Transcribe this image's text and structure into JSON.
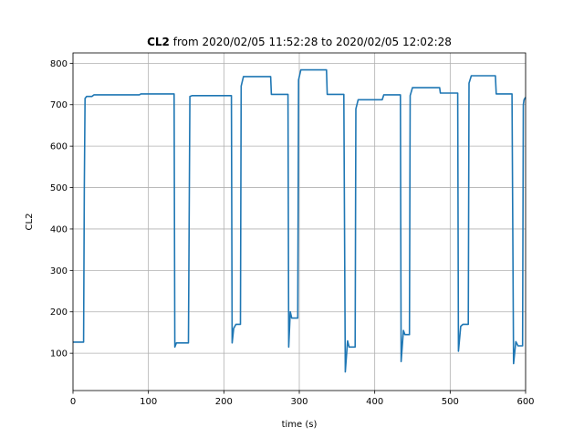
{
  "chart_data": {
    "type": "line",
    "title_bold": "CL2",
    "title_rest": " from 2020/02/05 11:52:28 to 2020/02/05 12:02:28",
    "xlabel": "time (s)",
    "ylabel": "CL2",
    "xlim": [
      0,
      600
    ],
    "ylim": [
      10,
      825
    ],
    "grid": true,
    "x_ticks": [
      0,
      100,
      200,
      300,
      400,
      500,
      600
    ],
    "y_ticks": [
      100,
      200,
      300,
      400,
      500,
      600,
      700,
      800
    ],
    "colors": {
      "line": "#1f77b4"
    },
    "series": [
      {
        "values": [
          [
            0,
            127
          ],
          [
            14,
            127
          ],
          [
            15,
            500
          ],
          [
            16,
            715
          ],
          [
            18,
            720
          ],
          [
            25,
            720
          ],
          [
            28,
            724
          ],
          [
            60,
            724
          ],
          [
            88,
            724
          ],
          [
            90,
            726
          ],
          [
            134,
            726
          ],
          [
            135,
            115
          ],
          [
            137,
            125
          ],
          [
            153,
            125
          ],
          [
            155,
            720
          ],
          [
            158,
            722
          ],
          [
            210,
            722
          ],
          [
            211,
            125
          ],
          [
            213,
            160
          ],
          [
            216,
            170
          ],
          [
            222,
            170
          ],
          [
            223,
            745
          ],
          [
            226,
            768
          ],
          [
            262,
            768
          ],
          [
            263,
            725
          ],
          [
            285,
            725
          ],
          [
            286,
            115
          ],
          [
            288,
            200
          ],
          [
            290,
            185
          ],
          [
            298,
            185
          ],
          [
            299,
            760
          ],
          [
            302,
            784
          ],
          [
            336,
            784
          ],
          [
            337,
            725
          ],
          [
            359,
            725
          ],
          [
            361,
            55
          ],
          [
            364,
            130
          ],
          [
            366,
            115
          ],
          [
            374,
            115
          ],
          [
            375,
            690
          ],
          [
            378,
            712
          ],
          [
            410,
            712
          ],
          [
            412,
            724
          ],
          [
            434,
            724
          ],
          [
            435,
            80
          ],
          [
            438,
            155
          ],
          [
            440,
            145
          ],
          [
            446,
            145
          ],
          [
            447,
            722
          ],
          [
            450,
            741
          ],
          [
            486,
            741
          ],
          [
            487,
            728
          ],
          [
            510,
            728
          ],
          [
            511,
            105
          ],
          [
            514,
            165
          ],
          [
            517,
            170
          ],
          [
            524,
            170
          ],
          [
            525,
            752
          ],
          [
            528,
            770
          ],
          [
            560,
            770
          ],
          [
            561,
            726
          ],
          [
            582,
            726
          ],
          [
            584,
            75
          ],
          [
            587,
            128
          ],
          [
            590,
            118
          ],
          [
            596,
            118
          ],
          [
            597,
            700
          ],
          [
            598,
            712
          ],
          [
            600,
            718
          ]
        ]
      }
    ]
  }
}
